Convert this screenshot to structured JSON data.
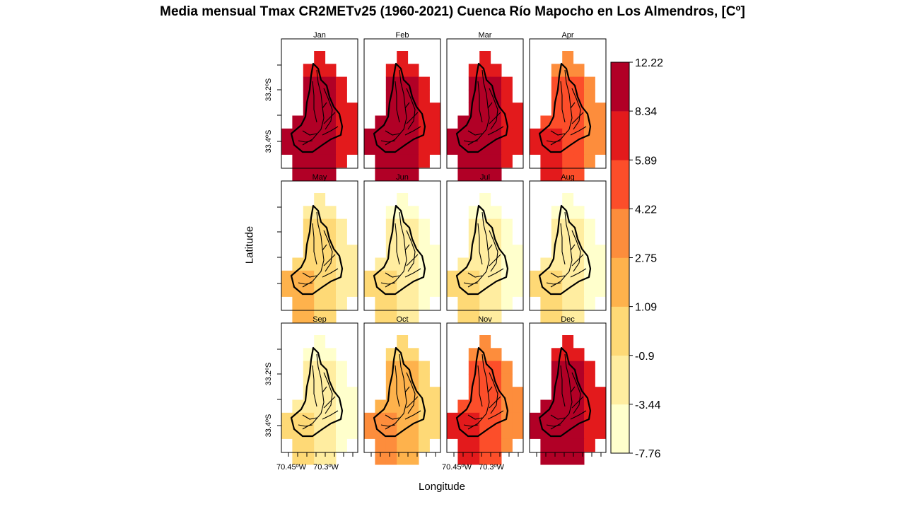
{
  "title": "Media mensual Tmax CR2METv25 (1960-2021) Cuenca Río Mapocho en Los Almendros, [Cº]",
  "xlabel": "Longitude",
  "ylabel": "Latitude",
  "chart_data": {
    "type": "heatmap",
    "title": "Media mensual Tmax CR2METv25 (1960-2021) Cuenca Río Mapocho en Los Almendros, [Cº]",
    "xlabel": "Longitude",
    "ylabel": "Latitude",
    "panels": [
      "Jan",
      "Feb",
      "Mar",
      "Apr",
      "May",
      "Jun",
      "Jul",
      "Aug",
      "Sep",
      "Oct",
      "Nov",
      "Dec"
    ],
    "x_ticks": [
      "70.45ºW",
      "70.3ºW"
    ],
    "y_ticks": [
      "33.2ºS",
      "33.4ºS"
    ],
    "colorbar": {
      "breaks": [
        -7.76,
        -3.44,
        -0.9,
        1.09,
        2.75,
        4.22,
        5.89,
        8.34,
        12.22
      ],
      "labels": [
        "-7.76",
        "-3.44",
        "-0.9",
        "1.09",
        "2.75",
        "4.22",
        "5.89",
        "8.34",
        "12.22"
      ],
      "colors": [
        "#ffffcc",
        "#ffeda0",
        "#fed976",
        "#feb24c",
        "#fd8d3c",
        "#fc4e2a",
        "#e31a1c",
        "#b10026"
      ]
    },
    "approx_class_index_by_month": {
      "Jan": 7,
      "Feb": 7,
      "Mar": 7,
      "Apr": 5,
      "May": 2,
      "Jun": 1,
      "Jul": 1,
      "Aug": 1,
      "Sep": 1,
      "Oct": 3,
      "Nov": 5,
      "Dec": 7
    },
    "grid": false
  }
}
